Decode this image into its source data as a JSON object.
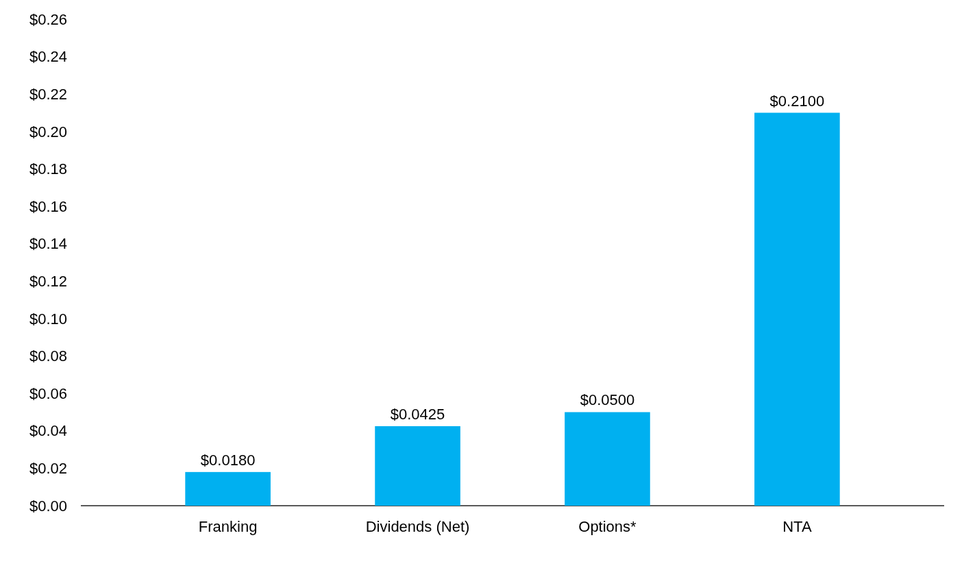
{
  "chart_data": {
    "type": "bar",
    "categories": [
      "Franking",
      "Dividends (Net)",
      "Options*",
      "NTA"
    ],
    "values": [
      0.018,
      0.0425,
      0.05,
      0.21
    ],
    "value_labels": [
      "$0.0180",
      "$0.0425",
      "$0.0500",
      "$0.2100"
    ],
    "color": "#00b0f0",
    "ylim": [
      0,
      0.26
    ],
    "yticks": [
      {
        "value": 0,
        "label": "$0.00"
      },
      {
        "value": 0.02,
        "label": "$0.02"
      },
      {
        "value": 0.04,
        "label": "$0.04"
      },
      {
        "value": 0.06,
        "label": "$0.06"
      },
      {
        "value": 0.08,
        "label": "$0.08"
      },
      {
        "value": 0.1,
        "label": "$0.10"
      },
      {
        "value": 0.12,
        "label": "$0.12"
      },
      {
        "value": 0.14,
        "label": "$0.14"
      },
      {
        "value": 0.16,
        "label": "$0.16"
      },
      {
        "value": 0.18,
        "label": "$0.18"
      },
      {
        "value": 0.2,
        "label": "$0.20"
      },
      {
        "value": 0.22,
        "label": "$0.22"
      },
      {
        "value": 0.24,
        "label": "$0.24"
      },
      {
        "value": 0.26,
        "label": "$0.26"
      }
    ]
  }
}
